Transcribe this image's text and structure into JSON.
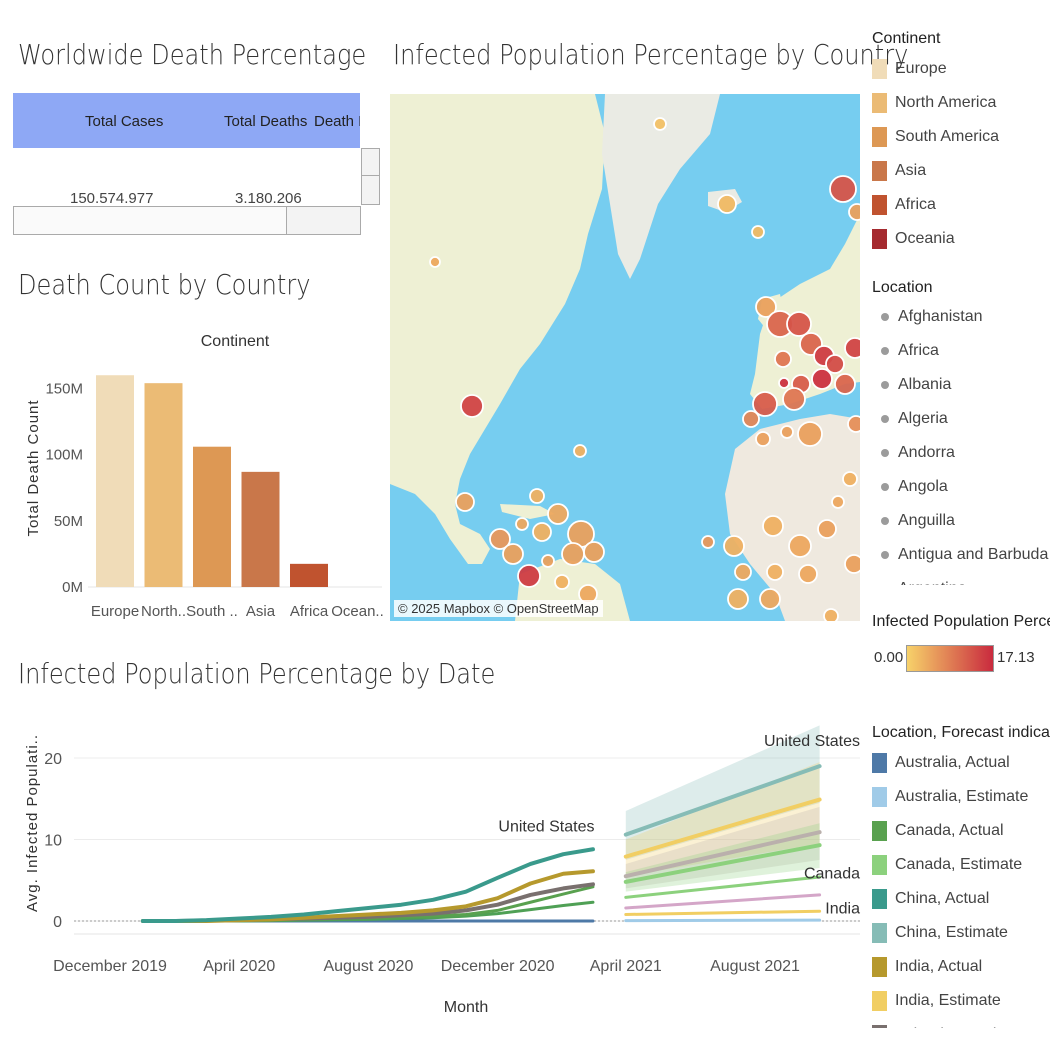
{
  "dashboard": {
    "kpi_title": "Worldwide Death Percentage",
    "death_title": "Death Count by Country",
    "map_title": "Infected Population Percentage by Country",
    "date_title": "Infected Population Percentage by Date"
  },
  "kpi": {
    "headers": [
      "Total Cases",
      "Total Deaths",
      "Death P"
    ],
    "values": [
      "150,574,977",
      "3,180,206"
    ]
  },
  "map": {
    "credit": "© 2025 Mapbox © OpenStreetMap"
  },
  "continent_legend": {
    "title": "Continent",
    "items": [
      {
        "label": "Europe",
        "color": "#f0dcb8"
      },
      {
        "label": "North America",
        "color": "#ebbb75"
      },
      {
        "label": "South America",
        "color": "#dd9854"
      },
      {
        "label": "Asia",
        "color": "#c9774a"
      },
      {
        "label": "Africa",
        "color": "#c0532f"
      },
      {
        "label": "Oceania",
        "color": "#a52a2f"
      }
    ]
  },
  "location_legend": {
    "title": "Location",
    "items": [
      "Afghanistan",
      "Africa",
      "Albania",
      "Algeria",
      "Andorra",
      "Angola",
      "Anguilla",
      "Antigua and Barbuda",
      "Argentina"
    ]
  },
  "color_scale": {
    "title": "Infected Population Perce..",
    "min": "0.00",
    "max": "17.13",
    "color_low": "#f7d26a",
    "color_high": "#c92a3e"
  },
  "forecast_legend": {
    "title": "Location, Forecast indicat..",
    "items": [
      {
        "label": "Australia, Actual",
        "color": "#4e79a7"
      },
      {
        "label": "Australia, Estimate",
        "color": "#a0cbe8"
      },
      {
        "label": "Canada, Actual",
        "color": "#59a14f"
      },
      {
        "label": "Canada, Estimate",
        "color": "#8cd17d"
      },
      {
        "label": "China, Actual",
        "color": "#3a9a8c"
      },
      {
        "label": "China, Estimate",
        "color": "#86bcb6"
      },
      {
        "label": "India, Actual",
        "color": "#b6992d"
      },
      {
        "label": "India, Estimate",
        "color": "#f1ce63"
      },
      {
        "label": "Ireland, Actual",
        "color": "#79706e"
      }
    ]
  },
  "chart_data": [
    {
      "type": "bar",
      "title": "Death Count by Country",
      "header": "Continent",
      "xlabel": "",
      "ylabel": "Total Death Count",
      "categories": [
        "Europe",
        "North..",
        "South ..",
        "Asia",
        "Africa",
        "Ocean.."
      ],
      "values": [
        160000000,
        154000000,
        106000000,
        87000000,
        17500000,
        0
      ],
      "colors": [
        "#f0dcb8",
        "#ebbb75",
        "#dd9854",
        "#c9774a",
        "#c0532f",
        "#a52a2f"
      ],
      "ylim": [
        0,
        170000000
      ],
      "yticks": [
        {
          "v": 0,
          "label": "0M"
        },
        {
          "v": 50000000,
          "label": "50M"
        },
        {
          "v": 100000000,
          "label": "100M"
        },
        {
          "v": 150000000,
          "label": "150M"
        }
      ],
      "grid": false
    },
    {
      "type": "line",
      "title": "Infected Population Percentage by Date",
      "xlabel": "Month",
      "ylabel": "Avg. Infected Populati..",
      "ylim": [
        -1.5,
        25
      ],
      "yticks": [
        0,
        10,
        20
      ],
      "xticks": [
        {
          "date": "2019-12",
          "label": "December 2019"
        },
        {
          "date": "2020-04",
          "label": "April 2020"
        },
        {
          "date": "2020-08",
          "label": "August 2020"
        },
        {
          "date": "2020-12",
          "label": "December 2020"
        },
        {
          "date": "2021-04",
          "label": "April 2021"
        },
        {
          "date": "2021-08",
          "label": "August 2021"
        }
      ],
      "actual_x": [
        "2020-01",
        "2020-02",
        "2020-03",
        "2020-04",
        "2020-05",
        "2020-06",
        "2020-07",
        "2020-08",
        "2020-09",
        "2020-10",
        "2020-11",
        "2020-12",
        "2021-01",
        "2021-02",
        "2021-03"
      ],
      "estimate_x": [
        "2021-04",
        "2021-10"
      ],
      "series": [
        {
          "name": "United States, Actual",
          "color": "#3a9a8c",
          "width": 4,
          "values": [
            0,
            0,
            0.1,
            0.3,
            0.5,
            0.8,
            1.2,
            1.6,
            2.0,
            2.6,
            3.6,
            5.3,
            7.0,
            8.2,
            8.8
          ]
        },
        {
          "name": "India, Actual",
          "color": "#b6992d",
          "width": 4,
          "values": [
            0,
            0,
            0,
            0.1,
            0.2,
            0.4,
            0.6,
            0.8,
            1.0,
            1.3,
            1.8,
            2.8,
            4.6,
            5.8,
            6.1
          ]
        },
        {
          "name": "Ireland, Actual",
          "color": "#79706e",
          "width": 4,
          "values": [
            0,
            0,
            0.05,
            0.1,
            0.2,
            0.3,
            0.4,
            0.5,
            0.7,
            0.9,
            1.3,
            2.0,
            3.2,
            4.0,
            4.5
          ]
        },
        {
          "name": "Canada, Actual",
          "color": "#59a14f",
          "width": 3,
          "values": [
            0,
            0,
            0,
            0.05,
            0.1,
            0.2,
            0.3,
            0.4,
            0.5,
            0.6,
            0.8,
            1.3,
            2.3,
            3.3,
            4.2
          ]
        },
        {
          "name": "China, Actual",
          "color": "#4fa055",
          "width": 3,
          "values": [
            0,
            0,
            0,
            0,
            0.05,
            0.1,
            0.15,
            0.2,
            0.3,
            0.4,
            0.6,
            0.9,
            1.4,
            1.9,
            2.3
          ]
        },
        {
          "name": "Australia, Actual",
          "color": "#4e79a7",
          "width": 3,
          "values": [
            0,
            0,
            0,
            0,
            0,
            0,
            0,
            0,
            0,
            0,
            0,
            0,
            0,
            0,
            0
          ]
        }
      ],
      "estimates": [
        {
          "name": "United States, Estimate",
          "color": "#86bcb6",
          "width": 4,
          "values": [
            10.6,
            19.0
          ],
          "band": [
            [
              7.5,
              13.5
            ],
            [
              14.5,
              24.0
            ]
          ]
        },
        {
          "name": "India, Estimate",
          "color": "#f1ce63",
          "width": 4,
          "values": [
            7.9,
            14.9
          ],
          "band": [
            [
              5.5,
              10.0
            ],
            [
              9.5,
              19.5
            ]
          ]
        },
        {
          "name": "Ireland, Estimate",
          "color": "#bab0ac",
          "width": 4,
          "values": [
            5.5,
            10.9
          ],
          "band": [
            [
              4.0,
              7.0
            ],
            [
              7.5,
              14.0
            ]
          ]
        },
        {
          "name": "Canada, Estimate",
          "color": "#8cd17d",
          "width": 4,
          "values": [
            4.8,
            9.3
          ],
          "band": [
            [
              3.6,
              6.0
            ],
            [
              6.5,
              12.0
            ]
          ]
        },
        {
          "name": "Canada, Estimate (2)",
          "color": "#8cd17d",
          "width": 3,
          "values": [
            2.9,
            5.4
          ],
          "band": null
        },
        {
          "name": "Pink, Estimate",
          "color": "#d4a6c8",
          "width": 3,
          "values": [
            1.6,
            3.2
          ],
          "band": null
        },
        {
          "name": "India, Estimate (2)",
          "color": "#f1ce63",
          "width": 3,
          "values": [
            0.8,
            1.2
          ],
          "band": null
        },
        {
          "name": "Australia, Estimate",
          "color": "#a0cbe8",
          "width": 3,
          "values": [
            0.05,
            0.1
          ],
          "band": null
        }
      ],
      "annotations": [
        {
          "text": "United States",
          "x": "2021-01",
          "y": 11.0
        },
        {
          "text": "United States",
          "x": "2021-10",
          "y": 21.5
        },
        {
          "text": "Canada",
          "x": "2021-10",
          "y": 5.2
        },
        {
          "text": "India",
          "x": "2021-10",
          "y": 0.9
        }
      ]
    }
  ]
}
